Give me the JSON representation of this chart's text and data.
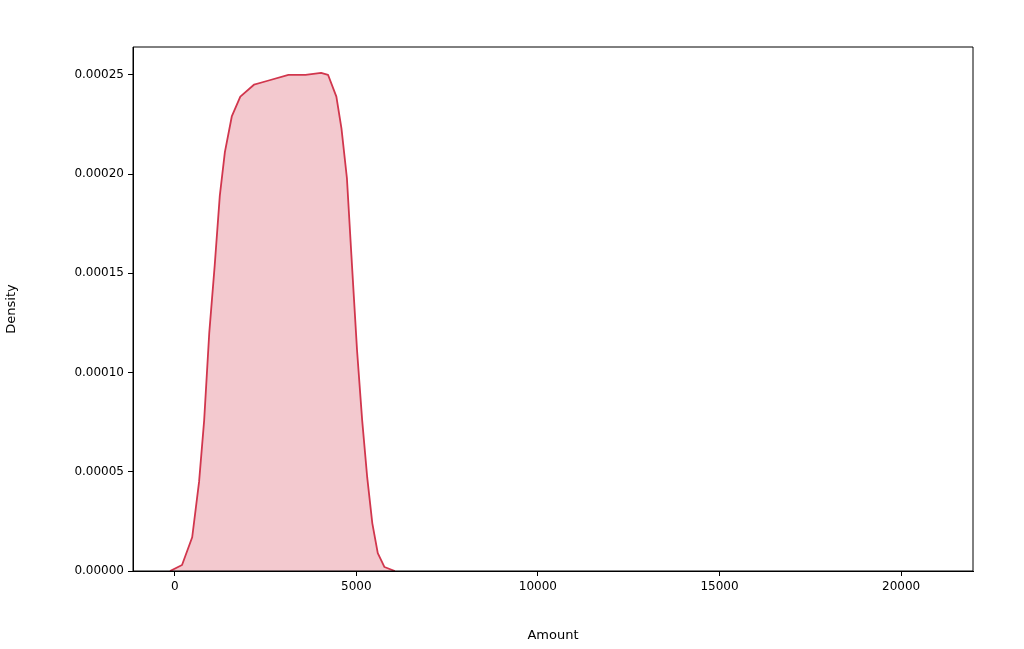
{
  "chart_data": {
    "type": "area",
    "xlabel": "Amount",
    "ylabel": "Density",
    "x": [
      -130,
      200,
      480,
      670,
      810,
      950,
      1100,
      1240,
      1380,
      1570,
      1805,
      2180,
      2560,
      3130,
      3600,
      4030,
      4220,
      4450,
      4590,
      4740,
      4880,
      5020,
      5160,
      5300,
      5440,
      5590,
      5775,
      6060
    ],
    "series": [
      {
        "color": "#d1364d",
        "values": [
          0,
          3e-06,
          1.7e-05,
          4.5e-05,
          7.6e-05,
          0.00012,
          0.000154,
          0.000189,
          0.000211,
          0.000229,
          0.000239,
          0.000245,
          0.000247,
          0.00025,
          0.00025,
          0.000251,
          0.00025,
          0.000239,
          0.000223,
          0.000198,
          0.000154,
          0.000111,
          7.6e-05,
          4.7e-05,
          2.4e-05,
          9e-06,
          2e-06,
          0
        ]
      }
    ],
    "xlim": [
      -1150,
      21980
    ],
    "ylim": [
      0,
      0.000264
    ],
    "xticks": [
      0,
      5000,
      10000,
      15000,
      20000
    ],
    "yticks": [
      {
        "value": 0,
        "label": "0.00000"
      },
      {
        "value": 5e-05,
        "label": "0.00005"
      },
      {
        "value": 0.0001,
        "label": "0.00010"
      },
      {
        "value": 0.00015,
        "label": "0.00015"
      },
      {
        "value": 0.0002,
        "label": "0.00020"
      },
      {
        "value": 0.00025,
        "label": "0.00025"
      }
    ],
    "grid": false,
    "legend": false
  }
}
